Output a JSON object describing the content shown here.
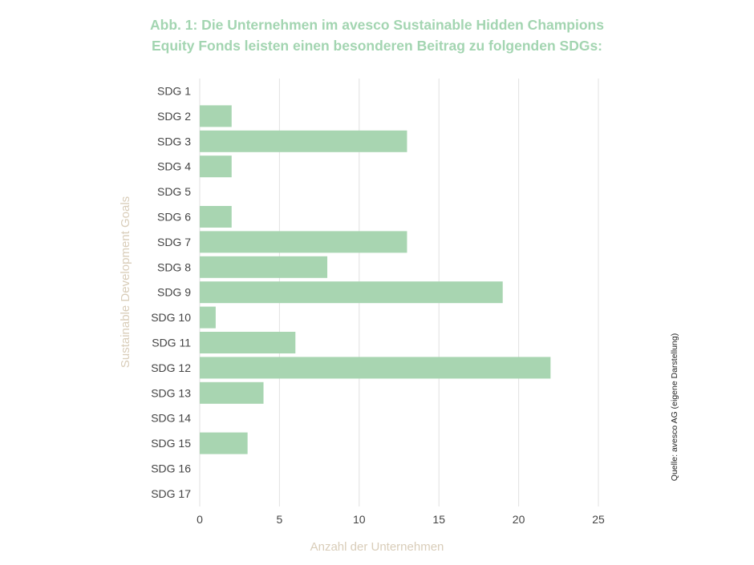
{
  "title": {
    "line1": "Abb. 1: Die Unternehmen im avesco Sustainable Hidden Champions",
    "line2": "Equity Fonds leisten einen besonderen Beitrag zu folgenden SDGs:"
  },
  "source_note": "Quelle: avesco AG (eigene Darstellung)",
  "colors": {
    "bar": "#a8d5b1",
    "title": "#a3d5b1",
    "axis_label": "#d9cdb9",
    "grid": "#e2e2e2",
    "tick_text": "#444444"
  },
  "chart_data": {
    "type": "bar",
    "orientation": "horizontal",
    "categories": [
      "SDG 1",
      "SDG 2",
      "SDG 3",
      "SDG 4",
      "SDG 5",
      "SDG 6",
      "SDG 7",
      "SDG 8",
      "SDG 9",
      "SDG 10",
      "SDG 11",
      "SDG 12",
      "SDG 13",
      "SDG 14",
      "SDG 15",
      "SDG 16",
      "SDG 17"
    ],
    "values": [
      0,
      2,
      13,
      2,
      0,
      2,
      13,
      8,
      19,
      1,
      6,
      22,
      4,
      0,
      3,
      0,
      0
    ],
    "xlabel": "Anzahl der Unternehmen",
    "ylabel": "Sustainable Development Goals",
    "xlim": [
      0,
      25
    ],
    "xticks": [
      "0",
      "5",
      "10",
      "15",
      "20",
      "25"
    ],
    "grid": "vertical",
    "legend": "none"
  }
}
